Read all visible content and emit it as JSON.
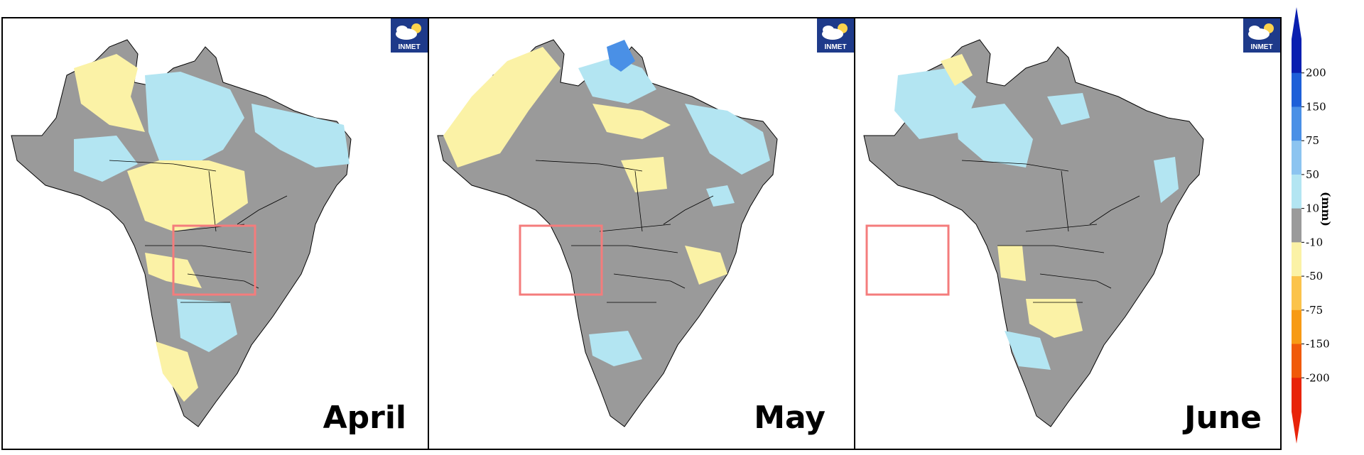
{
  "panels": [
    {
      "id": "april",
      "month": "April",
      "logo_text": "INMET"
    },
    {
      "id": "may",
      "month": "May",
      "logo_text": "INMET"
    },
    {
      "id": "june",
      "month": "June",
      "logo_text": "INMET"
    }
  ],
  "legend": {
    "units": "(mm)",
    "ticks": [
      "200",
      "150",
      "75",
      "50",
      "10",
      "-10",
      "-50",
      "-75",
      "-150",
      "-200"
    ],
    "colors": [
      "#0a1fb0",
      "#1e5fd8",
      "#4a90e6",
      "#8cc4f0",
      "#b3e5f2",
      "#9a9a9a",
      "#fbf2a6",
      "#fbc34b",
      "#f79a14",
      "#f05a0a",
      "#e8240a"
    ]
  },
  "colors": {
    "neutral": "#9a9a9a",
    "light_blue": "#b3e5f2",
    "yellow": "#fbf2a6",
    "highlight_box": "#f47c7c"
  }
}
